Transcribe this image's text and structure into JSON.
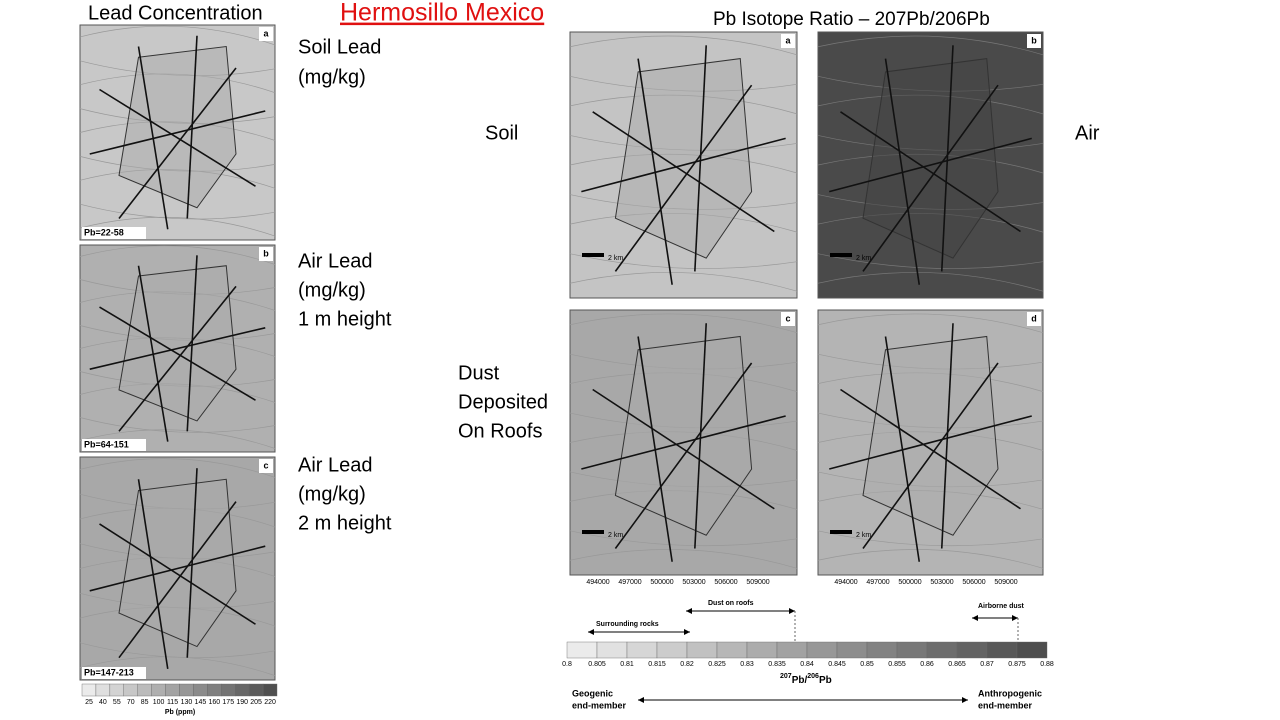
{
  "header": {
    "title": "Hermosillo Mexico"
  },
  "lead": {
    "title": "Lead Concentration",
    "maps": [
      {
        "letter": "a",
        "range": "Pb=22-58",
        "caption": [
          "Soil Lead",
          "(mg/kg)"
        ]
      },
      {
        "letter": "b",
        "range": "Pb=64-151",
        "caption": [
          "Air Lead",
          "(mg/kg)",
          "1 m height"
        ]
      },
      {
        "letter": "c",
        "range": "Pb=147-213",
        "caption": [
          "Air Lead",
          "(mg/kg)",
          "2 m height"
        ]
      }
    ],
    "colorbar": {
      "ticks": [
        "25",
        "40",
        "55",
        "70",
        "85",
        "100",
        "115",
        "130",
        "145",
        "160",
        "175",
        "190",
        "205",
        "220"
      ],
      "label": "Pb (ppm)"
    }
  },
  "isotope": {
    "title": "Pb Isotope Ratio – 207Pb/206Pb",
    "row_labels": [
      [
        "Soil"
      ],
      [
        "Dust",
        "Deposited",
        "On Roofs"
      ]
    ],
    "col_label": "Air",
    "maps": [
      {
        "letter": "a"
      },
      {
        "letter": "b"
      },
      {
        "letter": "c"
      },
      {
        "letter": "d"
      }
    ],
    "scale_bar": "2 km",
    "x_ticks": [
      "494000",
      "497000",
      "500000",
      "503000",
      "506000",
      "509000"
    ],
    "ranges": {
      "rocks": "Surrounding rocks",
      "roofs": "Dust on roofs",
      "airborne": "Airborne dust"
    },
    "colorbar": {
      "ticks": [
        "0.8",
        "0.805",
        "0.81",
        "0.815",
        "0.82",
        "0.825",
        "0.83",
        "0.835",
        "0.84",
        "0.845",
        "0.85",
        "0.855",
        "0.86",
        "0.865",
        "0.87",
        "0.875",
        "0.88"
      ],
      "axis_label": [
        "207",
        "Pb/",
        "206",
        "Pb"
      ]
    },
    "ends": {
      "left": [
        "Geogenic",
        "end-member"
      ],
      "right": [
        "Anthropogenic",
        "end-member"
      ]
    }
  }
}
